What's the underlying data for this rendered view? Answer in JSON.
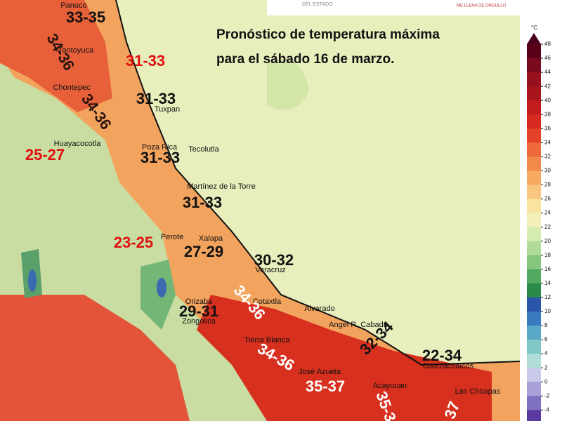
{
  "header": {
    "left_text": "DEL ESTADO",
    "right_text": "ME LLENA DE ORGULLO"
  },
  "title": [
    "Pronóstico de temperatura máxima",
    "para el sábado 16 de marzo."
  ],
  "colorbar": {
    "unit": "°C",
    "ticks": [
      48,
      46,
      44,
      42,
      40,
      38,
      36,
      34,
      32,
      30,
      28,
      26,
      24,
      22,
      20,
      18,
      16,
      14,
      12,
      10,
      8,
      6,
      4,
      2,
      0,
      -2,
      -4
    ],
    "colors": [
      "#5a0018",
      "#7a0a1e",
      "#96101e",
      "#a8141c",
      "#c21c1c",
      "#d62a20",
      "#e4432a",
      "#ee6a3a",
      "#f2894a",
      "#f6aa62",
      "#f8c67e",
      "#f9e3a0",
      "#f2f0b8",
      "#d6ebb0",
      "#b0db9a",
      "#84c67e",
      "#52aa62",
      "#2a8a4a",
      "#2a55a8",
      "#3a7ac0",
      "#5aa8c8",
      "#80c8c8",
      "#b0dcd8",
      "#c8c8e8",
      "#a8a0d8",
      "#8070c0"
    ]
  },
  "places": [
    "Panuco",
    "Tantoyuca",
    "Chontepec",
    "Tuxpan",
    "Huayacocotla",
    "Poza Rica",
    "Tecolutla",
    "Martínez de la Torre",
    "Perote",
    "Xalapa",
    "Veracruz",
    "Orizaba",
    "Cotaxtla",
    "Alvarado",
    "Zongolica",
    "Angel R. Cabada",
    "Tierra Blanca",
    "Coatzacoalcos",
    "José Azueta",
    "Acayucan",
    "Las Choapas"
  ],
  "forecasts": [
    {
      "label": "33-35",
      "color": "#111111"
    },
    {
      "label": "34-36",
      "color": "#2a1410"
    },
    {
      "label": "31-33",
      "color": "#e01010"
    },
    {
      "label": "31-33",
      "color": "#111111"
    },
    {
      "label": "34-36",
      "color": "#2a1410"
    },
    {
      "label": "25-27",
      "color": "#e01010"
    },
    {
      "label": "31-33",
      "color": "#111111"
    },
    {
      "label": "31-33",
      "color": "#111111"
    },
    {
      "label": "23-25",
      "color": "#e01010"
    },
    {
      "label": "27-29",
      "color": "#111111"
    },
    {
      "label": "30-32",
      "color": "#111111"
    },
    {
      "label": "34-36",
      "color": "#ffffff"
    },
    {
      "label": "29-31",
      "color": "#111111"
    },
    {
      "label": "34-36",
      "color": "#ffffff"
    },
    {
      "label": "32-34",
      "color": "#111111"
    },
    {
      "label": "22-34",
      "color": "#111111"
    },
    {
      "label": "35-37",
      "color": "#ffffff"
    },
    {
      "label": "35-3",
      "color": "#ffffff"
    },
    {
      "label": "37",
      "color": "#ffffff"
    }
  ]
}
